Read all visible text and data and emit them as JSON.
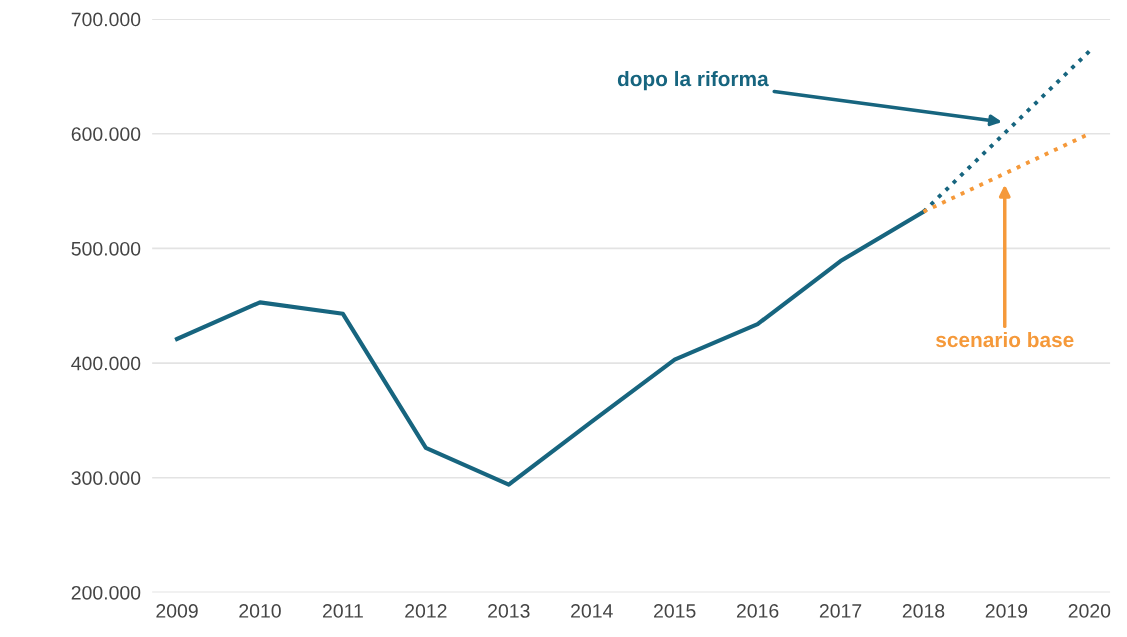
{
  "chart_data": {
    "type": "line",
    "categories": [
      "2009",
      "2010",
      "2011",
      "2012",
      "2013",
      "2014",
      "2015",
      "2016",
      "2017",
      "2018",
      "2019",
      "2020"
    ],
    "series": [
      {
        "color": "#17657f",
        "line_style": "solid",
        "values": [
          421000,
          453000,
          443000,
          326000,
          294000,
          349000,
          403000,
          434000,
          489000,
          532000,
          null,
          null
        ]
      },
      {
        "name": "dopo la riforma",
        "color": "#17657f",
        "line_style": "dotted",
        "values": [
          null,
          null,
          null,
          null,
          null,
          null,
          null,
          null,
          null,
          532000,
          602000,
          672000
        ]
      },
      {
        "name": "scenario base",
        "color": "#f5993a",
        "line_style": "dotted",
        "values": [
          null,
          null,
          null,
          null,
          null,
          null,
          null,
          null,
          null,
          532000,
          566000,
          600000
        ]
      }
    ],
    "ylim": [
      200000,
      700000
    ],
    "yticks": [
      {
        "value": 200000,
        "label": "200.000"
      },
      {
        "value": 300000,
        "label": "300.000"
      },
      {
        "value": 400000,
        "label": "400.000"
      },
      {
        "value": 500000,
        "label": "500.000"
      },
      {
        "value": 600000,
        "label": "600.000"
      },
      {
        "value": 700000,
        "label": "700.000"
      }
    ],
    "grid": "y",
    "legend": false,
    "marker": "none"
  }
}
